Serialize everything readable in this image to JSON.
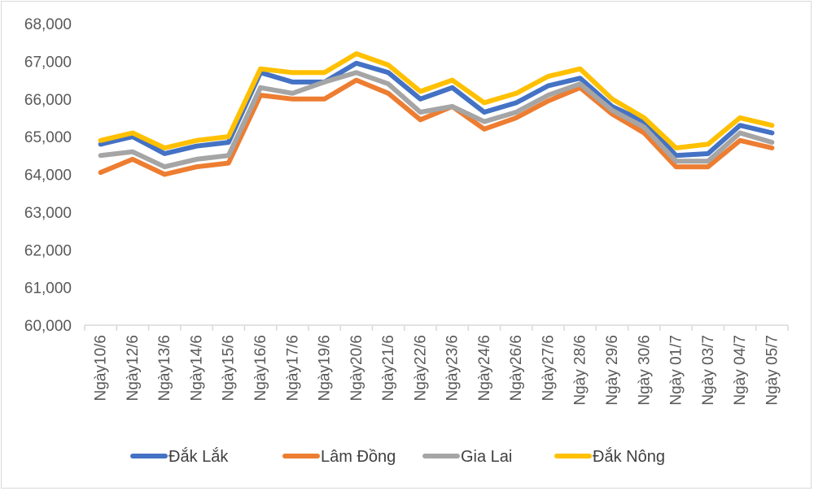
{
  "chart_data": {
    "type": "line",
    "title": "",
    "xlabel": "",
    "ylabel": "",
    "ylim": [
      60000,
      68000
    ],
    "yticks": [
      "60,000",
      "61,000",
      "62,000",
      "63,000",
      "64,000",
      "65,000",
      "66,000",
      "67,000",
      "68,000"
    ],
    "grid": false,
    "legend_position": "bottom",
    "categories": [
      "Ngày10/6",
      "Ngày12/6",
      "Ngày13/6",
      "Ngày14/6",
      "Ngày15/6",
      "Ngày16/6",
      "Ngày17/6",
      "Ngày19/6",
      "Ngày20/6",
      "Ngày21/6",
      "Ngày22/6",
      "Ngày23/6",
      "Ngày24/6",
      "Ngày26/6",
      "Ngày27/6",
      "Ngày 28/6",
      "Ngày 29/6",
      "Ngày 30/6",
      "Ngày 01/7",
      "Ngày 03/7",
      "Ngày 04/7",
      "Ngày 05/7"
    ],
    "series": [
      {
        "name": "Đắk Lắk",
        "color": "#4472c4",
        "values": [
          64800,
          65000,
          64550,
          64750,
          64850,
          66700,
          66450,
          66450,
          66950,
          66700,
          66000,
          66300,
          65650,
          65900,
          66350,
          66550,
          65800,
          65400,
          64500,
          64550,
          65300,
          65100
        ]
      },
      {
        "name": "Lâm Đồng",
        "color": "#ed7d31",
        "values": [
          64050,
          64400,
          64000,
          64200,
          64300,
          66100,
          66000,
          66000,
          66500,
          66150,
          65450,
          65800,
          65200,
          65500,
          65950,
          66300,
          65600,
          65100,
          64200,
          64200,
          64900,
          64700
        ]
      },
      {
        "name": "Gia Lai",
        "color": "#a5a5a5",
        "values": [
          64500,
          64600,
          64200,
          64400,
          64500,
          66300,
          66150,
          66450,
          66700,
          66400,
          65650,
          65800,
          65400,
          65650,
          66100,
          66400,
          65700,
          65250,
          64350,
          64350,
          65100,
          64850
        ]
      },
      {
        "name": "Đắk Nông",
        "color": "#ffc000",
        "values": [
          64900,
          65100,
          64700,
          64900,
          65000,
          66800,
          66700,
          66700,
          67200,
          66900,
          66200,
          66500,
          65900,
          66150,
          66600,
          66800,
          66000,
          65500,
          64700,
          64800,
          65500,
          65300
        ]
      }
    ]
  }
}
